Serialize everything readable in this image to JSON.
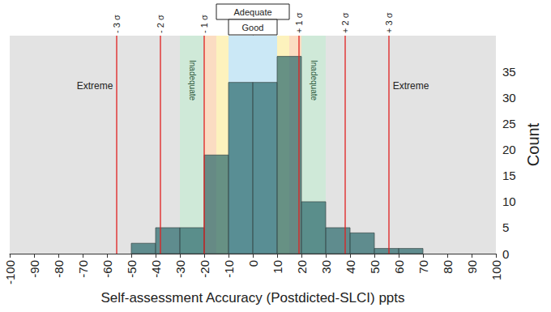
{
  "chart_data": {
    "type": "histogram",
    "xlabel": "Self-assessment Accuracy (Postdicted-SLCI) ppts",
    "ylabel": "Count",
    "bins": [
      -50,
      -40,
      -30,
      -20,
      -10,
      0,
      10,
      20,
      30,
      40,
      50,
      60,
      70
    ],
    "values": [
      2,
      5,
      5,
      19,
      33,
      33,
      38,
      10,
      5,
      4,
      1,
      1
    ],
    "color": "#2d6b6d",
    "xlim": [
      -100,
      100
    ],
    "xticks": [
      -100,
      -90,
      -80,
      -70,
      -60,
      -50,
      -40,
      -30,
      -20,
      -10,
      0,
      10,
      20,
      30,
      40,
      50,
      60,
      70,
      80,
      90,
      100
    ],
    "ylim": [
      0,
      42
    ],
    "yticks": [
      0,
      5,
      10,
      15,
      20,
      25,
      30,
      35
    ],
    "sigma_lines": {
      "values": [
        -56,
        -38,
        -20,
        19,
        38,
        56
      ],
      "labels": [
        "- 3 σ",
        "- 2 σ",
        "- 1 σ",
        "+ 1 σ",
        "+ 2 σ",
        "+ 3 σ"
      ],
      "color": "#e02020"
    },
    "bands": [
      {
        "from": -100,
        "to": -30,
        "color": "#e3e3e3",
        "label": "Extreme"
      },
      {
        "from": -30,
        "to": -20,
        "color": "#cfe9d8",
        "label": "Inadequate"
      },
      {
        "from": -20,
        "to": -15,
        "color": "#fbdcc2"
      },
      {
        "from": -15,
        "to": -10,
        "color": "#fdf2bd"
      },
      {
        "from": -10,
        "to": 10,
        "color": "#cbe8f6"
      },
      {
        "from": 10,
        "to": 15,
        "color": "#fdf2bd"
      },
      {
        "from": 15,
        "to": 20,
        "color": "#fbdcc2"
      },
      {
        "from": 20,
        "to": 30,
        "color": "#cfe9d8",
        "label": "Inadequate"
      },
      {
        "from": 30,
        "to": 100,
        "color": "#e3e3e3",
        "label": "Extreme"
      }
    ],
    "brackets": [
      {
        "label": "Adequate",
        "from": -15,
        "to": 15
      },
      {
        "label": "Good",
        "from": -10,
        "to": 10
      }
    ]
  }
}
